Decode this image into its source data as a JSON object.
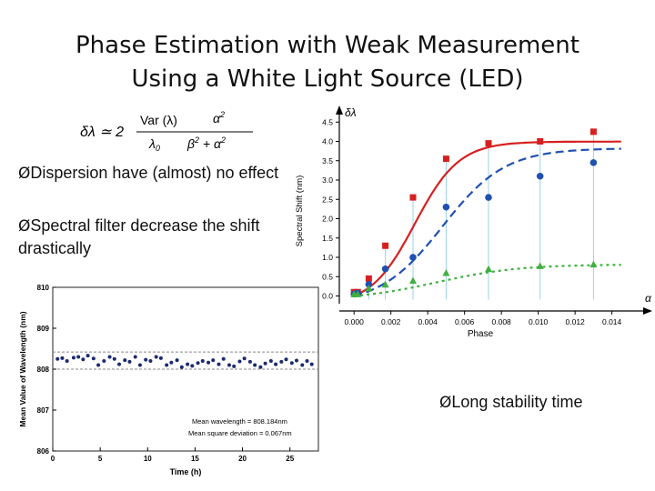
{
  "slide": {
    "title_line1": "Phase Estimation with Weak Measurement",
    "title_line2": "Using a White Light Source (LED)",
    "bullets": [
      {
        "arrow": "Ø",
        "text": "Dispersion have (almost) no effect"
      },
      {
        "arrow": "Ø",
        "text": "Spectral filter decrease the shift drastically"
      },
      {
        "arrow": "Ø",
        "text": "Long stability time"
      }
    ]
  },
  "formula": {
    "lhs": "δλ ≃ 2",
    "var": "Var (λ)",
    "lambda0": "λ0",
    "alpha_sq": "α2",
    "denominator": "β2 + α2"
  },
  "chart_data": [
    {
      "type": "scatter",
      "title": "",
      "xlabel": "Phase",
      "ylabel": "Spectral Shift (nm)",
      "x_axis_symbol": "α",
      "y_axis_symbol": "δλ",
      "xlim": [
        -0.0008,
        0.0155
      ],
      "ylim": [
        -0.2,
        4.6
      ],
      "x_ticks": [
        "0.000",
        "0.002",
        "0.004",
        "0.006",
        "0.008",
        "0.010",
        "0.012",
        "0.014"
      ],
      "y_ticks": [
        "0.0",
        "0.5",
        "1.0",
        "1.5",
        "2.0",
        "2.5",
        "3.0",
        "3.5",
        "4.0",
        "4.5"
      ],
      "grid": false,
      "series": [
        {
          "color": "#d62020",
          "marker": "square",
          "x": [
            0.0,
            0.0002,
            0.0008,
            0.0017,
            0.0032,
            0.005,
            0.0073,
            0.0101,
            0.013
          ],
          "y": [
            0.1,
            0.1,
            0.45,
            1.3,
            2.55,
            3.55,
            3.95,
            4.0,
            4.25
          ],
          "fit": {
            "style": "solid",
            "y_max": 4.25,
            "half_point": 0.0033,
            "slope": 0.0012
          }
        },
        {
          "color": "#2050b0",
          "marker": "circle",
          "x": [
            0.0,
            0.0002,
            0.0008,
            0.0017,
            0.0032,
            0.005,
            0.0073,
            0.0101,
            0.013
          ],
          "y": [
            0.05,
            0.07,
            0.3,
            0.7,
            1.0,
            2.3,
            2.55,
            3.1,
            3.45
          ],
          "fit": {
            "style": "dashed",
            "y_max": 4.05,
            "half_point": 0.0048,
            "slope": 0.0017
          }
        },
        {
          "color": "#40b040",
          "marker": "triangle",
          "x": [
            0.0,
            0.0002,
            0.0008,
            0.0017,
            0.0032,
            0.005,
            0.0073,
            0.0101,
            0.013
          ],
          "y": [
            0.05,
            0.05,
            0.2,
            0.3,
            0.4,
            0.6,
            0.7,
            0.78,
            0.82
          ],
          "fit": {
            "style": "dotted",
            "y_max": 0.92,
            "half_point": 0.0045,
            "slope": 0.0022
          }
        }
      ]
    },
    {
      "type": "scatter",
      "title": "",
      "xlabel": "Time (h)",
      "ylabel": "Mean Value of Wavelength (nm)",
      "xlim": [
        0,
        28
      ],
      "ylim": [
        806,
        810
      ],
      "x_ticks": [
        "0",
        "5",
        "10",
        "15",
        "20",
        "25"
      ],
      "y_ticks": [
        "806",
        "807",
        "808",
        "809",
        "810"
      ],
      "grid": false,
      "reference_lines": [
        808.0,
        808.42
      ],
      "annotations": [
        "Mean wavelength = 808.184nm",
        "Mean square deviation = 0.067nm"
      ],
      "series": [
        {
          "color": "#1c2a6e",
          "marker": "circle",
          "x": [
            0.5,
            1.0,
            1.5,
            2.2,
            2.7,
            3.2,
            3.7,
            4.3,
            4.8,
            5.4,
            6.0,
            6.5,
            7.0,
            7.6,
            8.1,
            8.7,
            9.2,
            9.8,
            10.3,
            10.9,
            11.4,
            12.0,
            12.5,
            13.1,
            13.6,
            14.2,
            14.7,
            15.3,
            15.8,
            16.4,
            16.9,
            17.5,
            18.0,
            18.6,
            19.1,
            19.7,
            20.2,
            20.8,
            21.3,
            21.9,
            22.4,
            23.0,
            23.5,
            24.1,
            24.6,
            25.2,
            25.7,
            26.3,
            26.8,
            27.3
          ],
          "y": [
            808.25,
            808.27,
            808.2,
            808.28,
            808.3,
            808.24,
            808.33,
            808.26,
            808.1,
            808.2,
            808.3,
            808.25,
            808.12,
            808.22,
            808.18,
            808.3,
            808.1,
            808.23,
            808.2,
            808.3,
            808.27,
            808.1,
            808.16,
            808.22,
            808.05,
            808.12,
            808.08,
            808.15,
            808.2,
            808.16,
            808.22,
            808.12,
            808.25,
            808.1,
            808.07,
            808.19,
            808.26,
            808.18,
            808.1,
            808.05,
            808.14,
            808.2,
            808.12,
            808.18,
            808.24,
            808.15,
            808.21,
            808.1,
            808.2,
            808.12
          ]
        }
      ]
    }
  ]
}
